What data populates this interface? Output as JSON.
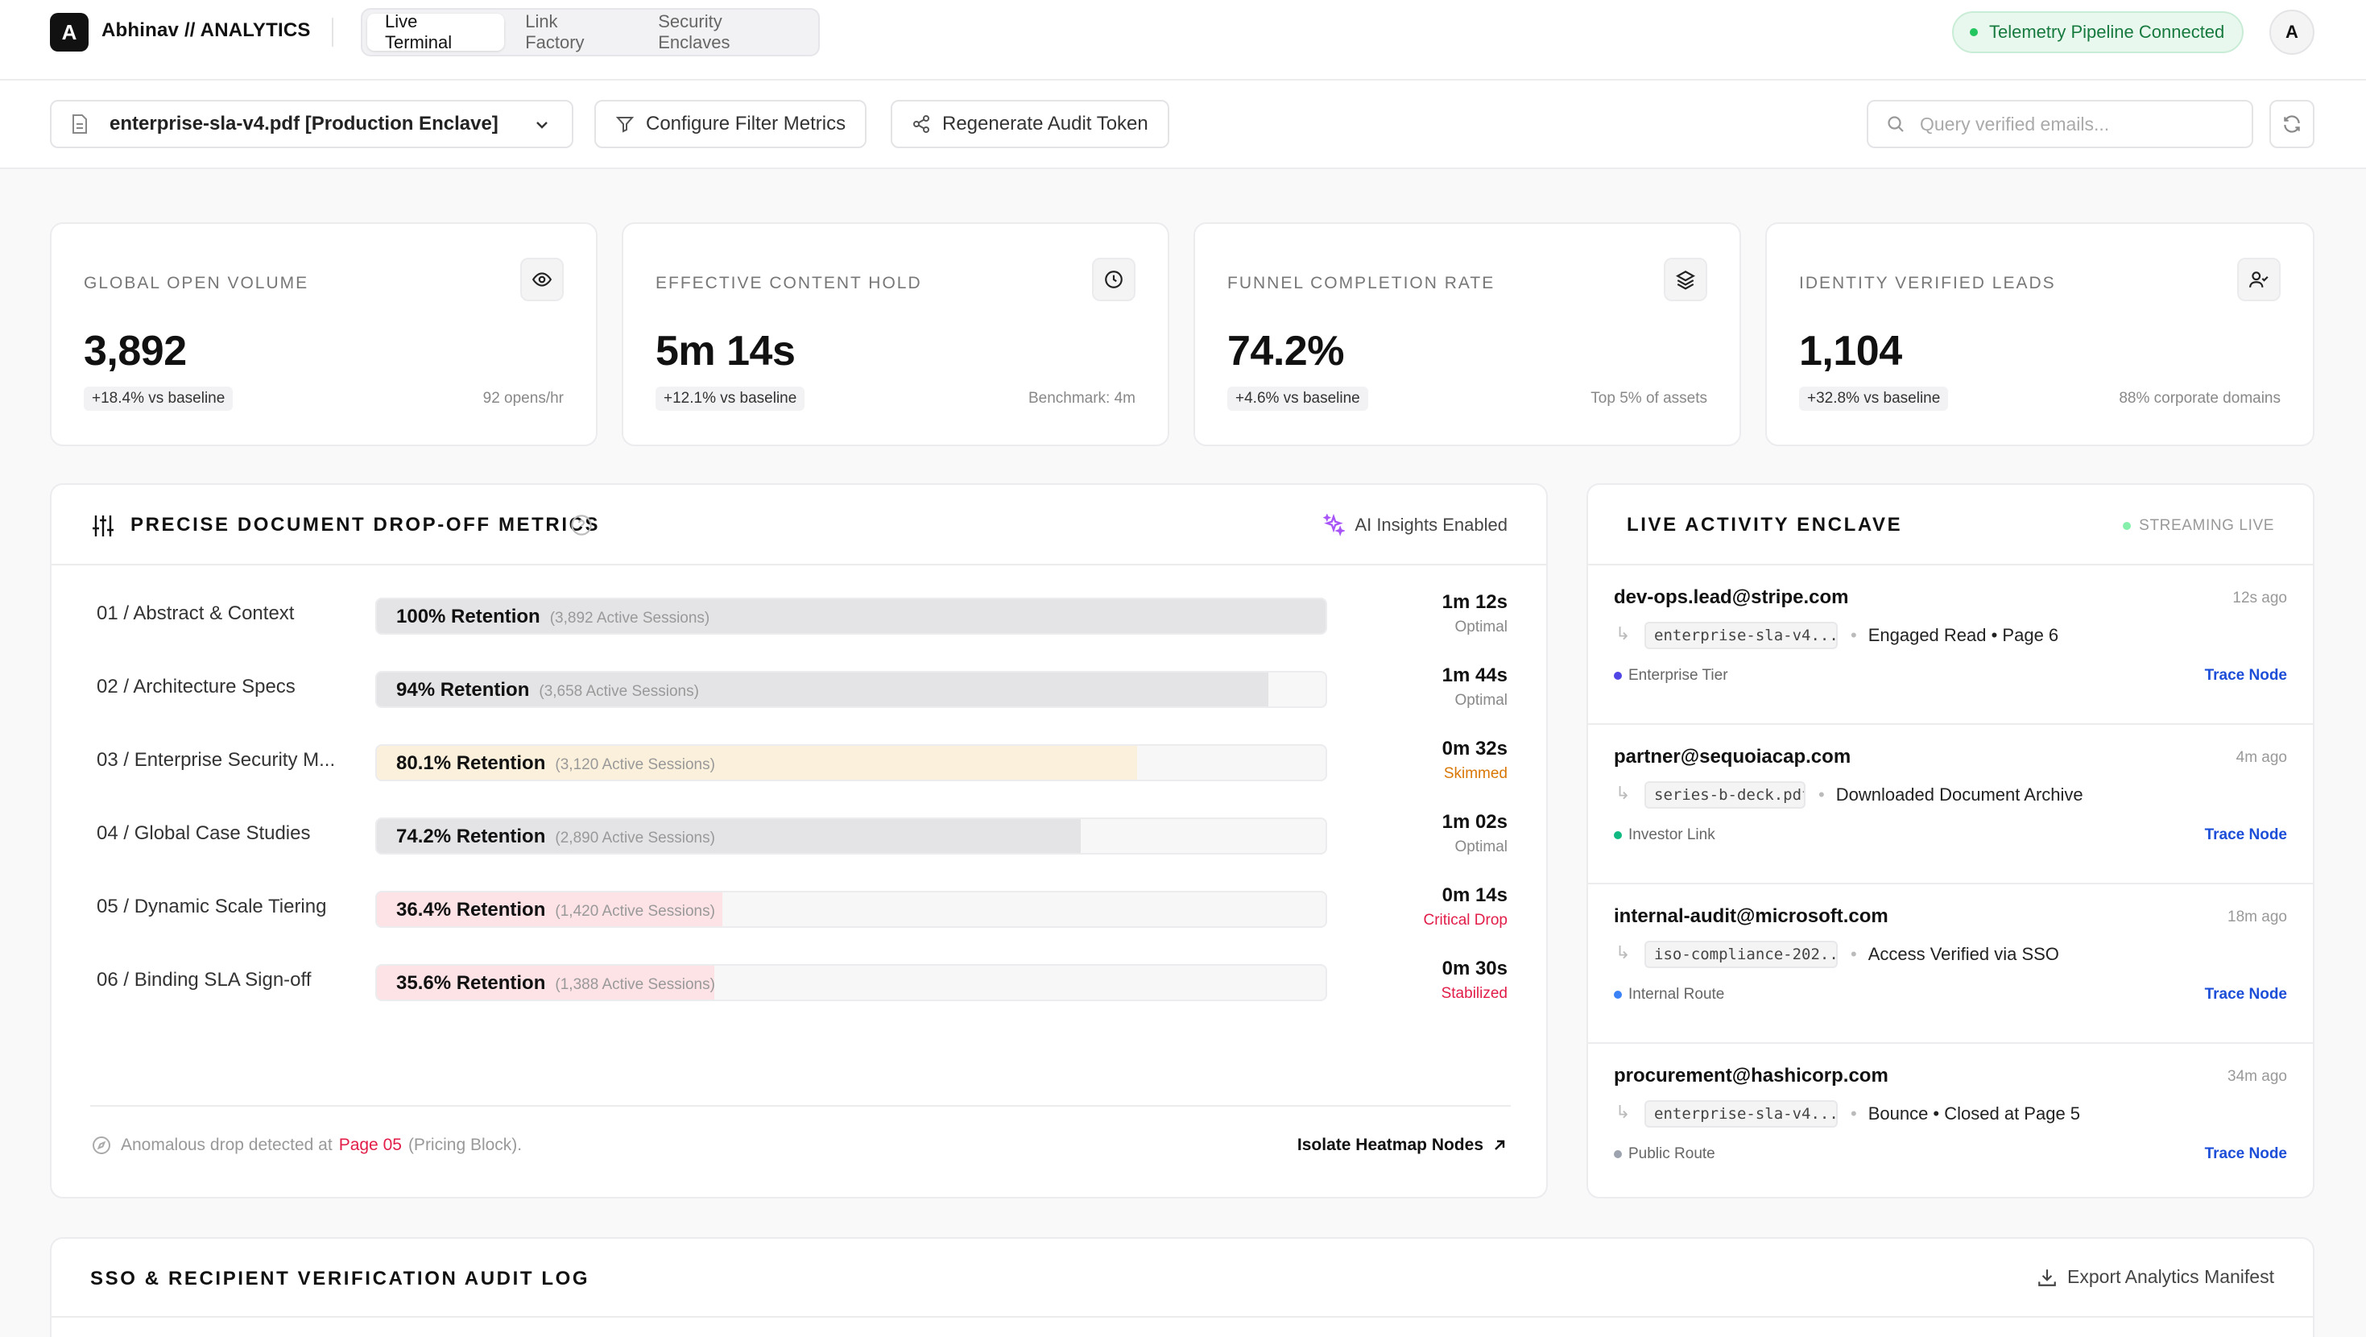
{
  "brand": {
    "logo": "A",
    "name": "Abhinav // ANALYTICS"
  },
  "nav": {
    "tabs": [
      {
        "label": "Live Terminal"
      },
      {
        "label": "Link Factory"
      },
      {
        "label": "Security Enclaves"
      }
    ]
  },
  "telemetry": {
    "label": "Telemetry Pipeline Connected",
    "color": "#22c55e"
  },
  "user": {
    "initial": "A"
  },
  "toolbar": {
    "document": "enterprise-sla-v4.pdf [Production Enclave]",
    "filter_label": "Configure Filter Metrics",
    "token_label": "Regenerate Audit Token",
    "search_placeholder": "Query verified emails..."
  },
  "kpis": [
    {
      "label": "GLOBAL OPEN VOLUME",
      "value": "3,892",
      "delta": "+18.4% vs baseline",
      "sub": "92 opens/hr",
      "icon": "eye-icon"
    },
    {
      "label": "EFFECTIVE CONTENT HOLD",
      "value": "5m 14s",
      "delta": "+12.1% vs baseline",
      "sub": "Benchmark: 4m",
      "icon": "clock-icon"
    },
    {
      "label": "FUNNEL COMPLETION RATE",
      "value": "74.2%",
      "delta": "+4.6% vs baseline",
      "sub": "Top 5% of assets",
      "icon": "layers-icon"
    },
    {
      "label": "IDENTITY VERIFIED LEADS",
      "value": "1,104",
      "delta": "+32.8% vs baseline",
      "sub": "88% corporate domains",
      "icon": "user-check-icon"
    }
  ],
  "dropoff": {
    "title": "PRECISE DOCUMENT DROP-OFF METRICS",
    "ai_label": "AI Insights Enabled",
    "rows": [
      {
        "page": "01 / Abstract & Context",
        "retention": "100% Retention",
        "sessions": "(3,892 Active Sessions)",
        "fill": 1.0,
        "time": "1m 12s",
        "status": "Optimal",
        "tone": "neutral"
      },
      {
        "page": "02 / Architecture Specs",
        "retention": "94% Retention",
        "sessions": "(3,658 Active Sessions)",
        "fill": 0.94,
        "time": "1m 44s",
        "status": "Optimal",
        "tone": "neutral"
      },
      {
        "page": "03 / Enterprise Security M...",
        "retention": "80.1% Retention",
        "sessions": "(3,120 Active Sessions)",
        "fill": 0.801,
        "time": "0m 32s",
        "status": "Skimmed",
        "tone": "warn"
      },
      {
        "page": "04 / Global Case Studies",
        "retention": "74.2% Retention",
        "sessions": "(2,890 Active Sessions)",
        "fill": 0.742,
        "time": "1m 02s",
        "status": "Optimal",
        "tone": "neutral"
      },
      {
        "page": "05 / Dynamic Scale Tiering",
        "retention": "36.4% Retention",
        "sessions": "(1,420 Active Sessions)",
        "fill": 0.364,
        "time": "0m 14s",
        "status": "Critical Drop",
        "tone": "danger"
      },
      {
        "page": "06 / Binding SLA Sign-off",
        "retention": "35.6% Retention",
        "sessions": "(1,388 Active Sessions)",
        "fill": 0.356,
        "time": "0m 30s",
        "status": "Stabilized",
        "tone": "danger"
      }
    ],
    "footer": {
      "prefix": "Anomalous drop detected at",
      "page": "Page 05",
      "suffix": "(Pricing Block).",
      "action": "Isolate Heatmap Nodes"
    }
  },
  "activity": {
    "title": "LIVE ACTIVITY ENCLAVE",
    "streaming": "STREAMING LIVE",
    "items": [
      {
        "email": "dev-ops.lead@stripe.com",
        "time": "12s ago",
        "file": "enterprise-sla-v4...",
        "action": "Engaged Read • Page 6",
        "tier": "Enterprise Tier",
        "tier_color": "#4f46e5",
        "trace": "Trace Node"
      },
      {
        "email": "partner@sequoiacap.com",
        "time": "4m ago",
        "file": "series-b-deck.pdf",
        "action": "Downloaded Document Archive",
        "tier": "Investor Link",
        "tier_color": "#10b981",
        "trace": "Trace Node"
      },
      {
        "email": "internal-audit@microsoft.com",
        "time": "18m ago",
        "file": "iso-compliance-202...",
        "action": "Access Verified via SSO",
        "tier": "Internal Route",
        "tier_color": "#3b82f6",
        "trace": "Trace Node"
      },
      {
        "email": "procurement@hashicorp.com",
        "time": "34m ago",
        "file": "enterprise-sla-v4...",
        "action": "Bounce • Closed at Page 5",
        "tier": "Public Route",
        "tier_color": "#9ca3af",
        "trace": "Trace Node"
      }
    ]
  },
  "audit": {
    "title": "SSO & RECIPIENT VERIFICATION AUDIT LOG",
    "export": "Export Analytics Manifest"
  },
  "colors": {
    "accent": "#111111",
    "danger": "#e11d48",
    "warn": "#d97706",
    "link": "#1d4ed8",
    "live": "#22c55e"
  }
}
